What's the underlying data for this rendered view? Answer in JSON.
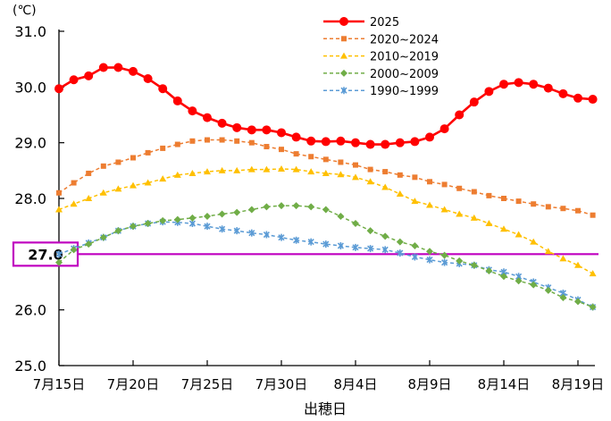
{
  "chart_data": {
    "type": "line",
    "unit_label": "(℃)",
    "xlabel": "出穂日",
    "ylabel": "",
    "ylim": [
      25.0,
      31.0
    ],
    "y_ticks": [
      "25.0",
      "26.0",
      "27.0",
      "28.0",
      "29.0",
      "30.0",
      "31.0"
    ],
    "x_day_range": [
      15,
      46
    ],
    "x_ticks": [
      {
        "day": 15,
        "label": "7月15日"
      },
      {
        "day": 20,
        "label": "7月20日"
      },
      {
        "day": 25,
        "label": "7月25日"
      },
      {
        "day": 30,
        "label": "7月30日"
      },
      {
        "day": 35,
        "label": "8月4日"
      },
      {
        "day": 40,
        "label": "8月9日"
      },
      {
        "day": 45,
        "label": "8月14日"
      },
      {
        "day": 50,
        "label": "8月19日"
      }
    ],
    "reference_line": {
      "value": 27.0,
      "label": "27.0",
      "color": "#c000c0"
    },
    "series": [
      {
        "name": "2025",
        "color": "#ff0000",
        "marker": "circle",
        "dash": "solid",
        "x_start_day": 15,
        "values": [
          29.97,
          30.13,
          30.2,
          30.35,
          30.35,
          30.28,
          30.15,
          29.97,
          29.75,
          29.57,
          29.45,
          29.35,
          29.27,
          29.23,
          29.23,
          29.18,
          29.1,
          29.03,
          29.02,
          29.03,
          29.0,
          28.97,
          28.97,
          29.0,
          29.02,
          29.1,
          29.25,
          29.5,
          29.73,
          29.92,
          30.05,
          30.08,
          30.05,
          29.98,
          29.88,
          29.8,
          29.78
        ]
      },
      {
        "name": "2020~2024",
        "color": "#ed7d31",
        "marker": "square",
        "dash": "dashed",
        "x_start_day": 15,
        "values": [
          28.1,
          28.28,
          28.45,
          28.58,
          28.65,
          28.73,
          28.82,
          28.9,
          28.97,
          29.03,
          29.05,
          29.05,
          29.03,
          29.0,
          28.93,
          28.88,
          28.8,
          28.75,
          28.7,
          28.65,
          28.6,
          28.52,
          28.48,
          28.42,
          28.38,
          28.3,
          28.25,
          28.18,
          28.12,
          28.05,
          28.0,
          27.95,
          27.9,
          27.85,
          27.82,
          27.78,
          27.7
        ]
      },
      {
        "name": "2010~2019",
        "color": "#ffc000",
        "marker": "triangle",
        "dash": "dashed",
        "x_start_day": 15,
        "values": [
          27.8,
          27.9,
          28.0,
          28.1,
          28.17,
          28.23,
          28.28,
          28.35,
          28.42,
          28.45,
          28.48,
          28.5,
          28.5,
          28.52,
          28.52,
          28.53,
          28.52,
          28.48,
          28.45,
          28.43,
          28.38,
          28.3,
          28.2,
          28.08,
          27.95,
          27.88,
          27.8,
          27.72,
          27.65,
          27.55,
          27.45,
          27.35,
          27.22,
          27.05,
          26.92,
          26.8,
          26.65
        ]
      },
      {
        "name": "2000~2009",
        "color": "#70ad47",
        "marker": "diamond",
        "dash": "dashed",
        "x_start_day": 15,
        "values": [
          26.85,
          27.08,
          27.18,
          27.3,
          27.42,
          27.5,
          27.55,
          27.6,
          27.62,
          27.65,
          27.68,
          27.72,
          27.75,
          27.8,
          27.85,
          27.87,
          27.87,
          27.85,
          27.8,
          27.68,
          27.55,
          27.42,
          27.32,
          27.22,
          27.15,
          27.05,
          26.98,
          26.88,
          26.8,
          26.7,
          26.6,
          26.52,
          26.45,
          26.35,
          26.22,
          26.15,
          26.05
        ]
      },
      {
        "name": "1990~1999",
        "color": "#5b9bd5",
        "marker": "x",
        "dash": "dashed",
        "x_start_day": 15,
        "values": [
          27.0,
          27.1,
          27.2,
          27.3,
          27.42,
          27.5,
          27.55,
          27.58,
          27.57,
          27.55,
          27.5,
          27.45,
          27.42,
          27.38,
          27.35,
          27.3,
          27.25,
          27.22,
          27.18,
          27.15,
          27.12,
          27.1,
          27.08,
          27.02,
          26.95,
          26.9,
          26.85,
          26.83,
          26.8,
          26.72,
          26.68,
          26.6,
          26.5,
          26.4,
          26.3,
          26.18,
          26.05
        ]
      }
    ],
    "legend": {
      "position": "top-right"
    }
  }
}
